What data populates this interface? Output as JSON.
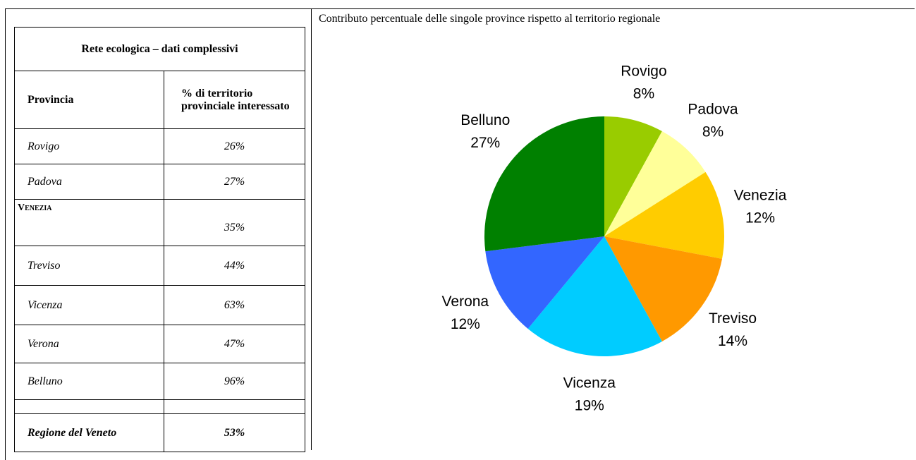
{
  "table": {
    "title": "Rete ecologica – dati complessivi",
    "header": [
      "Provincia",
      "% di territorio provinciale interessato"
    ],
    "rows": [
      [
        "Rovigo",
        "26%"
      ],
      [
        "Padova",
        "27%"
      ],
      [
        "Venezia",
        "35%"
      ],
      [
        "Treviso",
        "44%"
      ],
      [
        "Vicenza",
        "63%"
      ],
      [
        "Verona",
        "47%"
      ],
      [
        "Belluno",
        "96%"
      ]
    ],
    "total": [
      "Regione del Veneto",
      "53%"
    ]
  },
  "chart_data": {
    "type": "pie",
    "title": "Contributo percentuale delle singole province rispetto al territorio regionale",
    "categories": [
      "Rovigo",
      "Padova",
      "Venezia",
      "Treviso",
      "Vicenza",
      "Verona",
      "Belluno"
    ],
    "values": [
      8,
      8,
      12,
      14,
      19,
      12,
      27
    ],
    "value_labels": [
      "8%",
      "8%",
      "12%",
      "14%",
      "19%",
      "12%",
      "27%"
    ],
    "colors": [
      "#99cc00",
      "#ffff99",
      "#ffcc00",
      "#ff9900",
      "#00ccff",
      "#3366ff",
      "#008000"
    ]
  }
}
